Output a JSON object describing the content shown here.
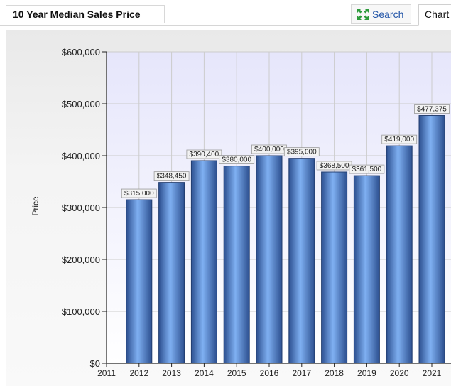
{
  "header": {
    "title": "10 Year Median Sales Price",
    "search_label": "Search",
    "chart_tab_label": "Chart"
  },
  "colors": {
    "bar_dark": "#2c4f8f",
    "bar_light": "#7fb0f2",
    "plot_bg_top": "#e6e6fb",
    "plot_bg_bottom": "#ffffff",
    "grid": "#cccccc",
    "search_icon": "#2c9a3a"
  },
  "icons": {
    "search": "expand-arrows-icon"
  },
  "chart_data": {
    "type": "bar",
    "title": "10 Year Median Sales Price",
    "xlabel": "",
    "ylabel": "Price",
    "x_ticks": [
      "2011",
      "2012",
      "2013",
      "2014",
      "2015",
      "2016",
      "2017",
      "2018",
      "2019",
      "2020",
      "2021"
    ],
    "categories": [
      "2012",
      "2013",
      "2014",
      "2015",
      "2016",
      "2017",
      "2018",
      "2019",
      "2020",
      "2021"
    ],
    "values": [
      315000,
      348450,
      390400,
      380000,
      400000,
      395000,
      368500,
      361500,
      419000,
      477375
    ],
    "data_labels": [
      "$315,000",
      "$348,450",
      "$390,400",
      "$380,000",
      "$400,000",
      "$395,000",
      "$368,500",
      "$361,500",
      "$419,000",
      "$477,375"
    ],
    "y_ticks": [
      0,
      100000,
      200000,
      300000,
      400000,
      500000,
      600000
    ],
    "y_tick_labels": [
      "$0",
      "$100,000",
      "$200,000",
      "$300,000",
      "$400,000",
      "$500,000",
      "$600,000"
    ],
    "ylim": [
      0,
      600000
    ],
    "grid": true,
    "legend": false
  }
}
